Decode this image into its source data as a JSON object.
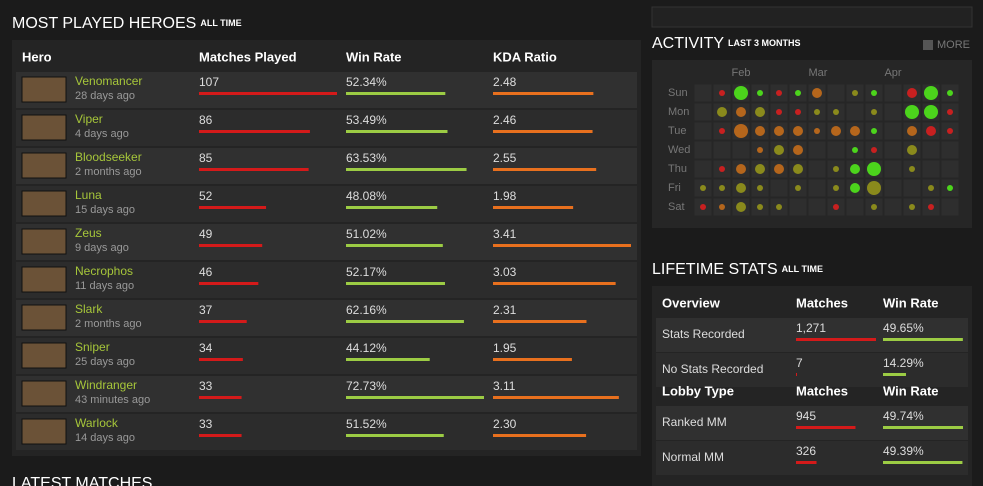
{
  "heroes": {
    "title": "MOST PLAYED HEROES",
    "subtitle": "ALL TIME",
    "columns": [
      "Hero",
      "Matches Played",
      "Win Rate",
      "KDA Ratio"
    ],
    "rows": [
      {
        "name": "Venomancer",
        "last": "28 days ago",
        "matches": 107,
        "win_rate": {
          "value": 52.34,
          "label": "52.34%"
        },
        "kda": 2.48
      },
      {
        "name": "Viper",
        "last": "4 days ago",
        "matches": 86,
        "win_rate": {
          "value": 53.49,
          "label": "53.49%"
        },
        "kda": 2.46
      },
      {
        "name": "Bloodseeker",
        "last": "2 months ago",
        "matches": 85,
        "win_rate": {
          "value": 63.53,
          "label": "63.53%"
        },
        "kda": 2.55
      },
      {
        "name": "Luna",
        "last": "15 days ago",
        "matches": 52,
        "win_rate": {
          "value": 48.08,
          "label": "48.08%"
        },
        "kda": 1.98
      },
      {
        "name": "Zeus",
        "last": "9 days ago",
        "matches": 49,
        "win_rate": {
          "value": 51.02,
          "label": "51.02%"
        },
        "kda": 3.41
      },
      {
        "name": "Necrophos",
        "last": "11 days ago",
        "matches": 46,
        "win_rate": {
          "value": 52.17,
          "label": "52.17%"
        },
        "kda": 3.03
      },
      {
        "name": "Slark",
        "last": "2 months ago",
        "matches": 37,
        "win_rate": {
          "value": 62.16,
          "label": "62.16%"
        },
        "kda": 2.31
      },
      {
        "name": "Sniper",
        "last": "25 days ago",
        "matches": 34,
        "win_rate": {
          "value": 44.12,
          "label": "44.12%"
        },
        "kda": 1.95
      },
      {
        "name": "Windranger",
        "last": "43 minutes ago",
        "matches": 33,
        "win_rate": {
          "value": 72.73,
          "label": "72.73%"
        },
        "kda": 3.11
      },
      {
        "name": "Warlock",
        "last": "14 days ago",
        "matches": 33,
        "win_rate": {
          "value": 51.52,
          "label": "51.52%"
        },
        "kda": {
          "value": 2.3,
          "label": "2.30"
        }
      }
    ]
  },
  "latest": {
    "title": "LATEST MATCHES"
  },
  "activity": {
    "title": "ACTIVITY",
    "subtitle": "LAST 3 MONTHS",
    "more": "MORE",
    "months": [
      "Feb",
      "Mar",
      "Apr"
    ],
    "days": [
      "Sun",
      "Mon",
      "Tue",
      "Wed",
      "Thu",
      "Fri",
      "Sat"
    ],
    "colors": [
      "#4cd41c",
      "#8a8a1c",
      "#b5661c",
      "#c82020"
    ],
    "cells": [
      [
        null,
        [
          1,
          3
        ],
        [
          3,
          0
        ],
        [
          1,
          0
        ],
        [
          1,
          3
        ],
        [
          1,
          0
        ],
        [
          2,
          2
        ],
        null,
        [
          1,
          1
        ],
        [
          1,
          0
        ],
        null,
        [
          2,
          3
        ],
        [
          3,
          0
        ],
        [
          1,
          0
        ]
      ],
      [
        null,
        [
          2,
          1
        ],
        [
          2,
          2
        ],
        [
          2,
          1
        ],
        [
          1,
          3
        ],
        [
          1,
          3
        ],
        [
          1,
          1
        ],
        [
          1,
          1
        ],
        null,
        [
          1,
          1
        ],
        null,
        [
          3,
          0
        ],
        [
          3,
          0
        ],
        [
          1,
          3
        ]
      ],
      [
        null,
        [
          1,
          3
        ],
        [
          3,
          2
        ],
        [
          2,
          2
        ],
        [
          2,
          2
        ],
        [
          2,
          2
        ],
        [
          1,
          2
        ],
        [
          2,
          2
        ],
        [
          2,
          2
        ],
        [
          1,
          0
        ],
        null,
        [
          2,
          2
        ],
        [
          2,
          3
        ],
        [
          1,
          3
        ]
      ],
      [
        null,
        null,
        null,
        [
          1,
          2
        ],
        [
          2,
          1
        ],
        [
          2,
          2
        ],
        null,
        null,
        [
          1,
          0
        ],
        [
          1,
          3
        ],
        null,
        [
          2,
          1
        ],
        null,
        null
      ],
      [
        null,
        [
          1,
          3
        ],
        [
          2,
          2
        ],
        [
          2,
          1
        ],
        [
          2,
          2
        ],
        [
          2,
          1
        ],
        null,
        [
          1,
          1
        ],
        [
          2,
          0
        ],
        [
          3,
          0
        ],
        null,
        [
          1,
          1
        ],
        null,
        null
      ],
      [
        [
          1,
          1
        ],
        [
          1,
          1
        ],
        [
          2,
          1
        ],
        [
          1,
          1
        ],
        null,
        [
          1,
          1
        ],
        null,
        [
          1,
          1
        ],
        [
          2,
          0
        ],
        [
          3,
          1
        ],
        null,
        null,
        [
          1,
          1
        ],
        [
          1,
          0
        ]
      ],
      [
        [
          1,
          3
        ],
        [
          1,
          2
        ],
        [
          2,
          1
        ],
        [
          1,
          1
        ],
        [
          1,
          1
        ],
        null,
        null,
        [
          1,
          3
        ],
        null,
        [
          1,
          1
        ],
        null,
        [
          1,
          1
        ],
        [
          1,
          3
        ],
        null
      ]
    ]
  },
  "lifetime": {
    "title": "LIFETIME STATS",
    "subtitle": "ALL TIME",
    "groups": [
      {
        "header": [
          "Overview",
          "Matches",
          "Win Rate"
        ],
        "rows": [
          {
            "label": "Stats Recorded",
            "matches": {
              "value": 1271,
              "label": "1,271"
            },
            "win_rate": {
              "value": 49.65,
              "label": "49.65%"
            }
          },
          {
            "label": "No Stats Recorded",
            "matches": 7,
            "win_rate": {
              "value": 14.29,
              "label": "14.29%"
            }
          }
        ]
      },
      {
        "header": [
          "Lobby Type",
          "Matches",
          "Win Rate"
        ],
        "rows": [
          {
            "label": "Ranked MM",
            "matches": 945,
            "win_rate": {
              "value": 49.74,
              "label": "49.74%"
            }
          },
          {
            "label": "Normal MM",
            "matches": 326,
            "win_rate": {
              "value": 49.39,
              "label": "49.39%"
            }
          }
        ]
      }
    ]
  }
}
